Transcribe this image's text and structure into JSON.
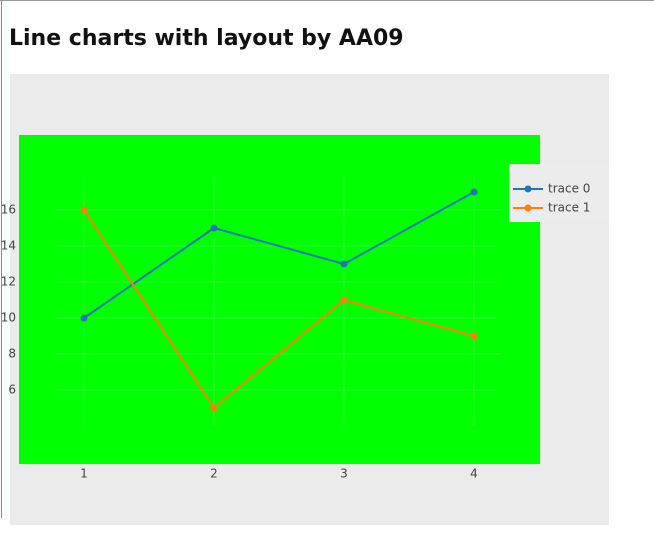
{
  "title": "Line charts with layout by AA09",
  "chart_data": {
    "type": "line",
    "x": [
      1,
      2,
      3,
      4
    ],
    "series": [
      {
        "name": "trace 0",
        "color": "#1f77b4",
        "values": [
          10,
          15,
          13,
          17
        ]
      },
      {
        "name": "trace 1",
        "color": "#ff7f0e",
        "values": [
          16,
          5,
          11,
          9
        ]
      }
    ],
    "xlim": [
      0.78,
      4.2
    ],
    "ylim": [
      4,
      18
    ],
    "xticks": [
      1,
      2,
      3,
      4
    ],
    "yticks": [
      6,
      8,
      10,
      12,
      14,
      16
    ],
    "grid": true
  }
}
